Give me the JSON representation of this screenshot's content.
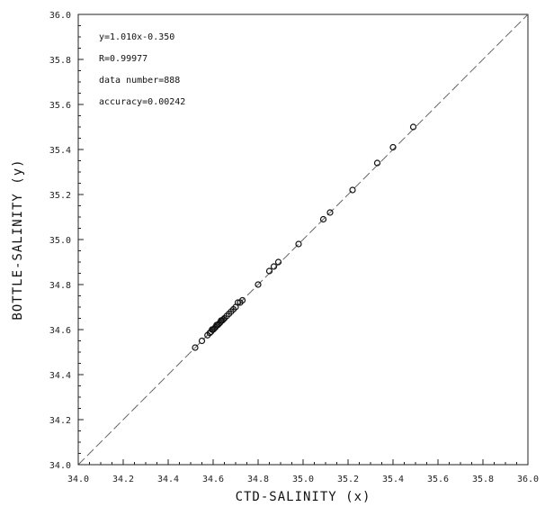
{
  "chart_data": {
    "type": "scatter",
    "xlabel": "CTD-SALINITY (x)",
    "ylabel": "BOTTLE-SALINITY (y)",
    "xlim": [
      34.0,
      36.0
    ],
    "ylim": [
      34.0,
      36.0
    ],
    "x_ticks": [
      "34.0",
      "34.2",
      "34.4",
      "34.6",
      "34.8",
      "35.0",
      "35.2",
      "35.4",
      "35.6",
      "35.8",
      "36.0"
    ],
    "y_ticks": [
      "34.0",
      "34.2",
      "34.4",
      "34.6",
      "34.8",
      "35.0",
      "35.2",
      "35.4",
      "35.6",
      "35.8",
      "36.0"
    ],
    "grid": false,
    "annotations": [
      "y=1.010x-0.350",
      "R=0.99977",
      "data number=888",
      "accuracy=0.00242"
    ],
    "reference_line": {
      "style": "dashed",
      "x": [
        34.0,
        36.0
      ],
      "y": [
        34.0,
        36.0
      ]
    },
    "points": [
      {
        "x": 34.52,
        "y": 34.52
      },
      {
        "x": 34.55,
        "y": 34.55
      },
      {
        "x": 34.575,
        "y": 34.575
      },
      {
        "x": 34.585,
        "y": 34.585
      },
      {
        "x": 34.59,
        "y": 34.59
      },
      {
        "x": 34.595,
        "y": 34.6
      },
      {
        "x": 34.6,
        "y": 34.6
      },
      {
        "x": 34.605,
        "y": 34.605
      },
      {
        "x": 34.61,
        "y": 34.61
      },
      {
        "x": 34.615,
        "y": 34.62
      },
      {
        "x": 34.62,
        "y": 34.62
      },
      {
        "x": 34.625,
        "y": 34.625
      },
      {
        "x": 34.63,
        "y": 34.63
      },
      {
        "x": 34.635,
        "y": 34.64
      },
      {
        "x": 34.64,
        "y": 34.64
      },
      {
        "x": 34.645,
        "y": 34.645
      },
      {
        "x": 34.65,
        "y": 34.65
      },
      {
        "x": 34.66,
        "y": 34.66
      },
      {
        "x": 34.67,
        "y": 34.67
      },
      {
        "x": 34.68,
        "y": 34.68
      },
      {
        "x": 34.69,
        "y": 34.69
      },
      {
        "x": 34.7,
        "y": 34.7
      },
      {
        "x": 34.71,
        "y": 34.72
      },
      {
        "x": 34.72,
        "y": 34.72
      },
      {
        "x": 34.73,
        "y": 34.73
      },
      {
        "x": 34.8,
        "y": 34.8
      },
      {
        "x": 34.85,
        "y": 34.86
      },
      {
        "x": 34.87,
        "y": 34.88
      },
      {
        "x": 34.89,
        "y": 34.9
      },
      {
        "x": 34.98,
        "y": 34.98
      },
      {
        "x": 35.09,
        "y": 35.09
      },
      {
        "x": 35.12,
        "y": 35.12
      },
      {
        "x": 35.22,
        "y": 35.22
      },
      {
        "x": 35.33,
        "y": 35.34
      },
      {
        "x": 35.4,
        "y": 35.41
      },
      {
        "x": 35.49,
        "y": 35.5
      }
    ]
  }
}
